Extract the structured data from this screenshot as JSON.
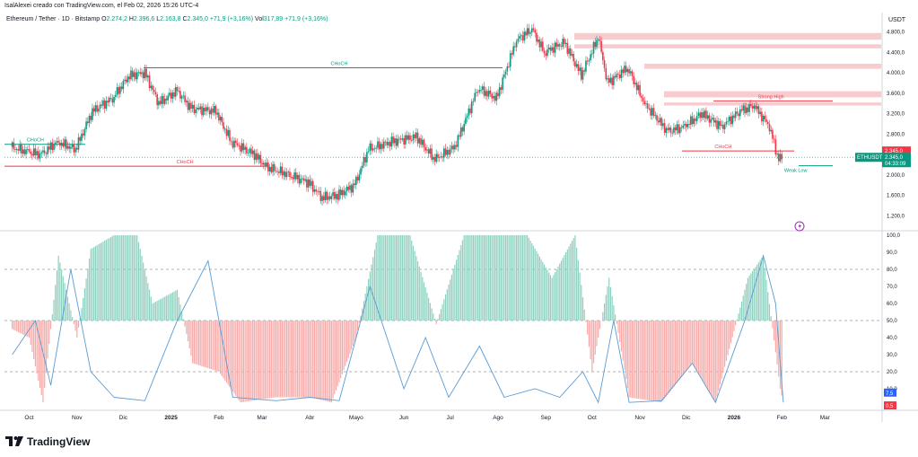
{
  "header": {
    "credit": "IsalAlexei creado con TradingView.com, el Feb 02, 2026 15:26 UTC-4",
    "symbol": "Ethereum / Tether · 1D · Bitstamp",
    "o_label": "O",
    "o_value": "2.274,2",
    "h_label": "H",
    "h_value": "2.396,6",
    "l_label": "L",
    "l_value": "2.163,8",
    "c_label": "C",
    "c_value": "2.345,0",
    "change": "+71,9 (+3,16%)",
    "vol_label": "Vol",
    "vol_value": "317,89",
    "vol_change": "+71,9 (+3,16%)",
    "currency": "USDT"
  },
  "brand": {
    "name": "TradingView"
  },
  "colors": {
    "up": "#089981",
    "down": "#f23645",
    "zone": "#f7c3c6",
    "osc_line": "#5b9bd5",
    "up_hist": "#8fd1c0",
    "down_hist": "#f7a9a8"
  },
  "chart_data": [
    {
      "type": "candlestick",
      "title": "",
      "symbol_tag": "ETHUSDT",
      "last_price": "2.345,0",
      "price_badge": "2.345,0",
      "countdown": "04:33:09",
      "yticks": [
        "4.800,0",
        "4.400,0",
        "4.000,0",
        "3.600,0",
        "3.200,0",
        "2.800,0",
        "2.000,0",
        "1.600,0",
        "1.200,0"
      ],
      "ylim": [
        1100,
        4900
      ],
      "xticks": [
        "Oct",
        "Nov",
        "Dic",
        "2025",
        "Feb",
        "Mar",
        "Abr",
        "Mayo",
        "Jun",
        "Jul",
        "Ago",
        "Sep",
        "Oct",
        "Nov",
        "Dic",
        "2026",
        "Feb",
        "Mar"
      ],
      "close_series": [
        {
          "date": "2024-09-20",
          "close": 2550
        },
        {
          "date": "2024-10-01",
          "close": 2450
        },
        {
          "date": "2024-10-10",
          "close": 2400
        },
        {
          "date": "2024-10-20",
          "close": 2650
        },
        {
          "date": "2024-11-01",
          "close": 2500
        },
        {
          "date": "2024-11-12",
          "close": 3250
        },
        {
          "date": "2024-11-25",
          "close": 3500
        },
        {
          "date": "2024-12-06",
          "close": 3950
        },
        {
          "date": "2024-12-16",
          "close": 4000
        },
        {
          "date": "2024-12-25",
          "close": 3400
        },
        {
          "date": "2025-01-06",
          "close": 3650
        },
        {
          "date": "2025-01-15",
          "close": 3300
        },
        {
          "date": "2025-01-31",
          "close": 3250
        },
        {
          "date": "2025-02-10",
          "close": 2650
        },
        {
          "date": "2025-02-25",
          "close": 2400
        },
        {
          "date": "2025-03-05",
          "close": 2150
        },
        {
          "date": "2025-03-20",
          "close": 2000
        },
        {
          "date": "2025-04-01",
          "close": 1850
        },
        {
          "date": "2025-04-10",
          "close": 1550
        },
        {
          "date": "2025-04-20",
          "close": 1600
        },
        {
          "date": "2025-05-01",
          "close": 1800
        },
        {
          "date": "2025-05-10",
          "close": 2500
        },
        {
          "date": "2025-05-25",
          "close": 2650
        },
        {
          "date": "2025-06-10",
          "close": 2750
        },
        {
          "date": "2025-06-22",
          "close": 2300
        },
        {
          "date": "2025-07-05",
          "close": 2550
        },
        {
          "date": "2025-07-20",
          "close": 3700
        },
        {
          "date": "2025-08-01",
          "close": 3500
        },
        {
          "date": "2025-08-14",
          "close": 4650
        },
        {
          "date": "2025-08-24",
          "close": 4850
        },
        {
          "date": "2025-09-01",
          "close": 4400
        },
        {
          "date": "2025-09-14",
          "close": 4600
        },
        {
          "date": "2025-09-25",
          "close": 3950
        },
        {
          "date": "2025-10-06",
          "close": 4700
        },
        {
          "date": "2025-10-12",
          "close": 3800
        },
        {
          "date": "2025-10-25",
          "close": 4100
        },
        {
          "date": "2025-11-05",
          "close": 3400
        },
        {
          "date": "2025-11-20",
          "close": 2850
        },
        {
          "date": "2025-12-01",
          "close": 2950
        },
        {
          "date": "2025-12-12",
          "close": 3200
        },
        {
          "date": "2025-12-25",
          "close": 2950
        },
        {
          "date": "2026-01-06",
          "close": 3250
        },
        {
          "date": "2026-01-15",
          "close": 3350
        },
        {
          "date": "2026-01-25",
          "close": 2950
        },
        {
          "date": "2026-01-31",
          "close": 2280
        },
        {
          "date": "2026-02-02",
          "close": 2345
        }
      ],
      "annotations": [
        {
          "text": "CHoCH",
          "color": "#089981",
          "price": 2600,
          "date": "2024-10-05"
        },
        {
          "text": "CHoCH",
          "color": "#089981",
          "price": 4100,
          "date": "2025-04-20"
        },
        {
          "text": "CHoCH",
          "color": "#f23645",
          "price": 2170,
          "date": "2025-01-10"
        },
        {
          "text": "CHoCH",
          "color": "#f23645",
          "price": 2470,
          "date": "2025-12-25"
        },
        {
          "text": "Strong High",
          "color": "#f23645",
          "price": 3450,
          "date": "2026-01-25"
        },
        {
          "text": "Weak Low",
          "color": "#089981",
          "price": 2010,
          "date": "2026-02-10"
        }
      ]
    },
    {
      "type": "bar",
      "title": "",
      "yticks": [
        "100,0",
        "90,0",
        "80,0",
        "70,0",
        "60,0",
        "50,0",
        "40,0",
        "30,0",
        "20,0",
        "10,0"
      ],
      "ylim": [
        0,
        100
      ],
      "levels": [
        80,
        50,
        20
      ],
      "badge_values": [
        "7,5",
        "0,5"
      ],
      "hist_series": [
        {
          "date": "2024-09-20",
          "value": 45
        },
        {
          "date": "2024-10-01",
          "value": 40
        },
        {
          "date": "2024-10-10",
          "value": 2
        },
        {
          "date": "2024-10-20",
          "value": 88
        },
        {
          "date": "2024-11-01",
          "value": 40
        },
        {
          "date": "2024-11-10",
          "value": 92
        },
        {
          "date": "2024-11-25",
          "value": 100
        },
        {
          "date": "2024-12-10",
          "value": 100
        },
        {
          "date": "2024-12-20",
          "value": 60
        },
        {
          "date": "2025-01-05",
          "value": 68
        },
        {
          "date": "2025-01-15",
          "value": 25
        },
        {
          "date": "2025-02-01",
          "value": 20
        },
        {
          "date": "2025-02-15",
          "value": 2
        },
        {
          "date": "2025-03-10",
          "value": 5
        },
        {
          "date": "2025-04-01",
          "value": 5
        },
        {
          "date": "2025-04-15",
          "value": 2
        },
        {
          "date": "2025-05-01",
          "value": 40
        },
        {
          "date": "2025-05-15",
          "value": 100
        },
        {
          "date": "2025-06-05",
          "value": 100
        },
        {
          "date": "2025-06-22",
          "value": 48
        },
        {
          "date": "2025-07-10",
          "value": 100
        },
        {
          "date": "2025-08-01",
          "value": 100
        },
        {
          "date": "2025-08-20",
          "value": 100
        },
        {
          "date": "2025-09-05",
          "value": 75
        },
        {
          "date": "2025-09-20",
          "value": 100
        },
        {
          "date": "2025-10-01",
          "value": 20
        },
        {
          "date": "2025-10-12",
          "value": 75
        },
        {
          "date": "2025-10-25",
          "value": 5
        },
        {
          "date": "2025-11-15",
          "value": 2
        },
        {
          "date": "2025-12-05",
          "value": 25
        },
        {
          "date": "2025-12-20",
          "value": 2
        },
        {
          "date": "2026-01-10",
          "value": 75
        },
        {
          "date": "2026-01-20",
          "value": 88
        },
        {
          "date": "2026-01-31",
          "value": 10
        },
        {
          "date": "2026-02-02",
          "value": 2
        }
      ],
      "line_series": [
        {
          "date": "2024-09-20",
          "value": 30
        },
        {
          "date": "2024-10-05",
          "value": 50
        },
        {
          "date": "2024-10-15",
          "value": 12
        },
        {
          "date": "2024-10-28",
          "value": 80
        },
        {
          "date": "2024-11-10",
          "value": 20
        },
        {
          "date": "2024-11-25",
          "value": 5
        },
        {
          "date": "2024-12-15",
          "value": 3
        },
        {
          "date": "2025-01-05",
          "value": 50
        },
        {
          "date": "2025-01-25",
          "value": 85
        },
        {
          "date": "2025-02-10",
          "value": 5
        },
        {
          "date": "2025-03-10",
          "value": 3
        },
        {
          "date": "2025-04-01",
          "value": 5
        },
        {
          "date": "2025-04-20",
          "value": 3
        },
        {
          "date": "2025-05-10",
          "value": 70
        },
        {
          "date": "2025-06-01",
          "value": 10
        },
        {
          "date": "2025-06-15",
          "value": 40
        },
        {
          "date": "2025-06-30",
          "value": 5
        },
        {
          "date": "2025-07-20",
          "value": 35
        },
        {
          "date": "2025-08-05",
          "value": 5
        },
        {
          "date": "2025-08-25",
          "value": 10
        },
        {
          "date": "2025-09-10",
          "value": 5
        },
        {
          "date": "2025-09-25",
          "value": 20
        },
        {
          "date": "2025-10-05",
          "value": 2
        },
        {
          "date": "2025-10-15",
          "value": 50
        },
        {
          "date": "2025-10-25",
          "value": 2
        },
        {
          "date": "2025-11-15",
          "value": 3
        },
        {
          "date": "2025-12-05",
          "value": 25
        },
        {
          "date": "2025-12-20",
          "value": 2
        },
        {
          "date": "2026-01-08",
          "value": 50
        },
        {
          "date": "2026-01-20",
          "value": 88
        },
        {
          "date": "2026-01-28",
          "value": 60
        },
        {
          "date": "2026-02-02",
          "value": 2
        }
      ]
    }
  ]
}
